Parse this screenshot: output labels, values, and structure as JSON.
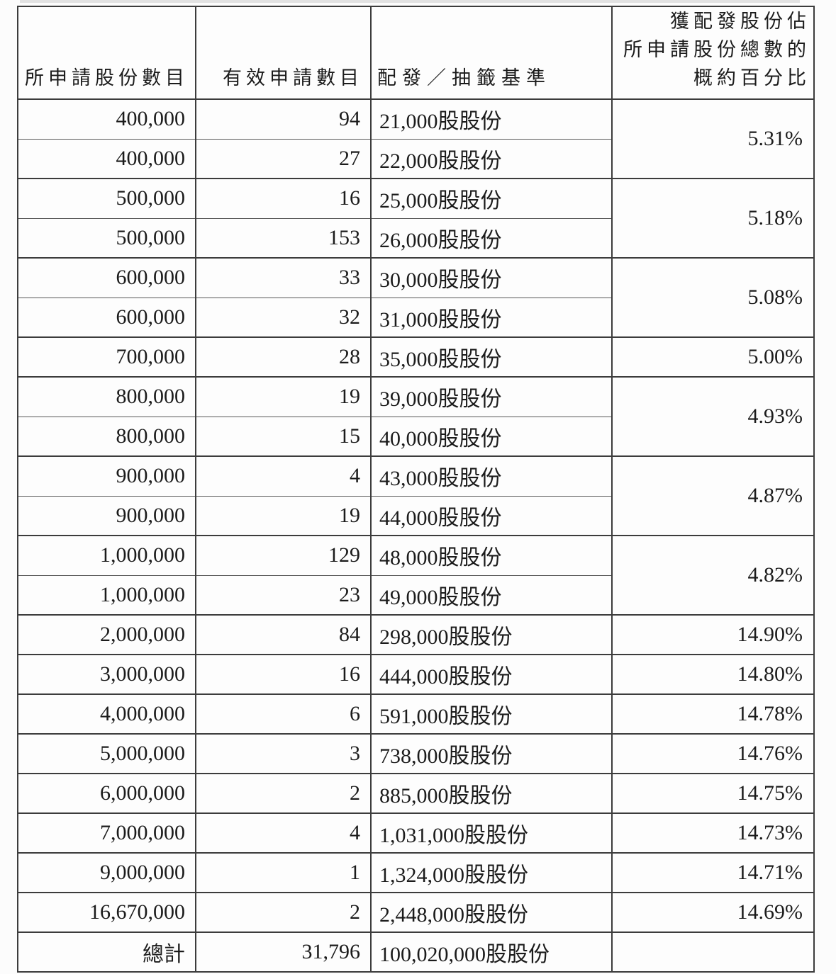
{
  "page": {
    "background": "#fcfcfc",
    "text_color": "#1b1b1b",
    "border_color": "#3c3c3c"
  },
  "table": {
    "headers": {
      "applied": "所申請股份數目",
      "valid": "有效申請數目",
      "basis": "配發／抽籤基準",
      "pct_line1": "獲配發股份佔",
      "pct_line2": "所申請股份總數的",
      "pct_line3": "概約百分比"
    },
    "rows": [
      {
        "applied": "400,000",
        "valid": "94",
        "basis": "21,000股股份",
        "pct": "5.31%"
      },
      {
        "applied": "400,000",
        "valid": "27",
        "basis": "22,000股股份"
      },
      {
        "applied": "500,000",
        "valid": "16",
        "basis": "25,000股股份",
        "pct": "5.18%"
      },
      {
        "applied": "500,000",
        "valid": "153",
        "basis": "26,000股股份"
      },
      {
        "applied": "600,000",
        "valid": "33",
        "basis": "30,000股股份",
        "pct": "5.08%"
      },
      {
        "applied": "600,000",
        "valid": "32",
        "basis": "31,000股股份"
      },
      {
        "applied": "700,000",
        "valid": "28",
        "basis": "35,000股股份",
        "pct": "5.00%"
      },
      {
        "applied": "800,000",
        "valid": "19",
        "basis": "39,000股股份",
        "pct": "4.93%"
      },
      {
        "applied": "800,000",
        "valid": "15",
        "basis": "40,000股股份"
      },
      {
        "applied": "900,000",
        "valid": "4",
        "basis": "43,000股股份",
        "pct": "4.87%"
      },
      {
        "applied": "900,000",
        "valid": "19",
        "basis": "44,000股股份"
      },
      {
        "applied": "1,000,000",
        "valid": "129",
        "basis": "48,000股股份",
        "pct": "4.82%"
      },
      {
        "applied": "1,000,000",
        "valid": "23",
        "basis": "49,000股股份"
      },
      {
        "applied": "2,000,000",
        "valid": "84",
        "basis": "298,000股股份",
        "pct": "14.90%"
      },
      {
        "applied": "3,000,000",
        "valid": "16",
        "basis": "444,000股股份",
        "pct": "14.80%"
      },
      {
        "applied": "4,000,000",
        "valid": "6",
        "basis": "591,000股股份",
        "pct": "14.78%"
      },
      {
        "applied": "5,000,000",
        "valid": "3",
        "basis": "738,000股股份",
        "pct": "14.76%"
      },
      {
        "applied": "6,000,000",
        "valid": "2",
        "basis": "885,000股股份",
        "pct": "14.75%"
      },
      {
        "applied": "7,000,000",
        "valid": "4",
        "basis": "1,031,000股股份",
        "pct": "14.73%"
      },
      {
        "applied": "9,000,000",
        "valid": "1",
        "basis": "1,324,000股股份",
        "pct": "14.71%"
      },
      {
        "applied": "16,670,000",
        "valid": "2",
        "basis": "2,448,000股股份",
        "pct": "14.69%"
      }
    ],
    "total": {
      "label": "總計",
      "valid": "31,796",
      "basis": "100,020,000股股份"
    }
  }
}
